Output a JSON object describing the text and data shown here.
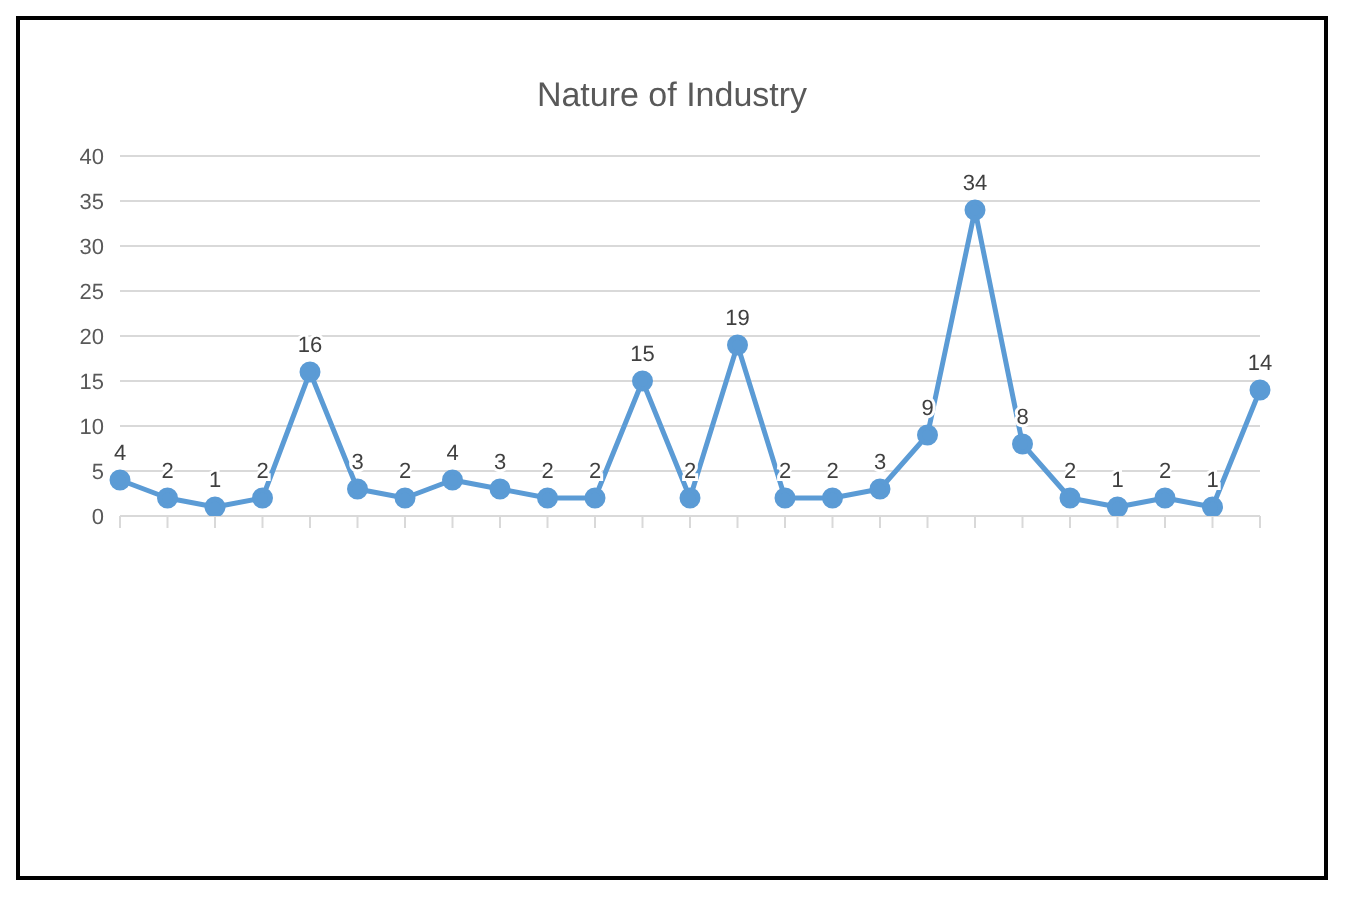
{
  "chart_data": {
    "type": "line",
    "title": "Nature of Industry",
    "categories": [
      null,
      null,
      null,
      null,
      null,
      null,
      null,
      null,
      null,
      null,
      null,
      null,
      null,
      null,
      null,
      null,
      null,
      null,
      null,
      null,
      null,
      null,
      null,
      null,
      null
    ],
    "series": [
      {
        "color": "#5b9bd5",
        "values": [
          4,
          2,
          1,
          2,
          16,
          3,
          2,
          4,
          3,
          2,
          2,
          15,
          2,
          19,
          2,
          2,
          3,
          9,
          34,
          8,
          2,
          1,
          2,
          1,
          14
        ]
      }
    ],
    "ylim": [
      0,
      40
    ],
    "yticks": [
      0,
      5,
      10,
      15,
      20,
      25,
      30,
      35,
      40
    ],
    "grid": "y",
    "data_labels": true,
    "marker": "circle",
    "line_style": "solid",
    "legend": false
  }
}
